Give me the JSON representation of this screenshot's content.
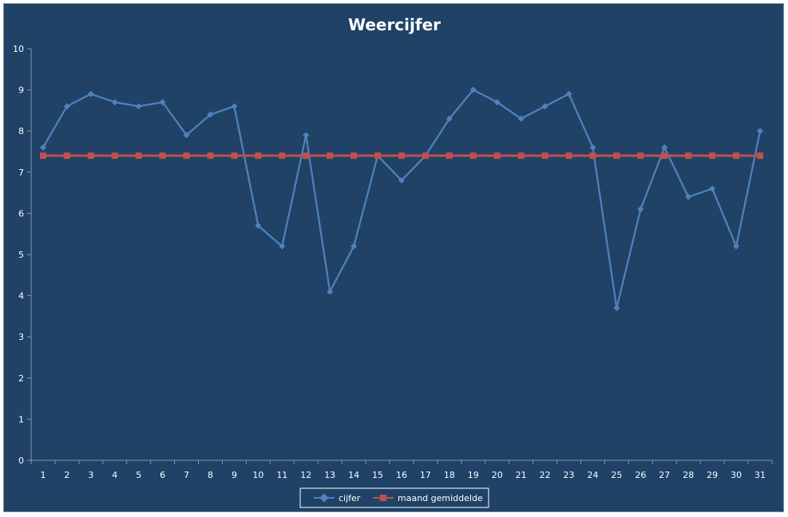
{
  "chart_data": {
    "type": "line",
    "title": "Weercijfer",
    "xlabel": "",
    "ylabel": "",
    "ylim": [
      0,
      10
    ],
    "yticks": [
      "0",
      "1",
      "2",
      "3",
      "4",
      "5",
      "6",
      "7",
      "8",
      "9",
      "10"
    ],
    "categories": [
      "1",
      "2",
      "3",
      "4",
      "5",
      "6",
      "7",
      "8",
      "9",
      "10",
      "11",
      "12",
      "13",
      "14",
      "15",
      "16",
      "17",
      "18",
      "19",
      "20",
      "21",
      "22",
      "23",
      "24",
      "25",
      "26",
      "27",
      "28",
      "29",
      "30",
      "31"
    ],
    "grid": false,
    "legend_position": "bottom",
    "series": [
      {
        "name": "cijfer",
        "color": "#4f81bd",
        "marker": "diamond",
        "values": [
          7.6,
          8.6,
          8.9,
          8.7,
          8.6,
          8.7,
          7.9,
          8.4,
          8.6,
          5.7,
          5.2,
          7.9,
          4.1,
          5.2,
          7.4,
          6.8,
          7.4,
          8.3,
          9.0,
          8.7,
          8.3,
          8.6,
          8.9,
          7.6,
          3.7,
          6.1,
          7.6,
          6.4,
          6.6,
          5.2,
          8.0
        ]
      },
      {
        "name": "maand gemiddelde",
        "color": "#c0504d",
        "marker": "square",
        "values": [
          7.4,
          7.4,
          7.4,
          7.4,
          7.4,
          7.4,
          7.4,
          7.4,
          7.4,
          7.4,
          7.4,
          7.4,
          7.4,
          7.4,
          7.4,
          7.4,
          7.4,
          7.4,
          7.4,
          7.4,
          7.4,
          7.4,
          7.4,
          7.4,
          7.4,
          7.4,
          7.4,
          7.4,
          7.4,
          7.4,
          7.4
        ]
      }
    ]
  }
}
